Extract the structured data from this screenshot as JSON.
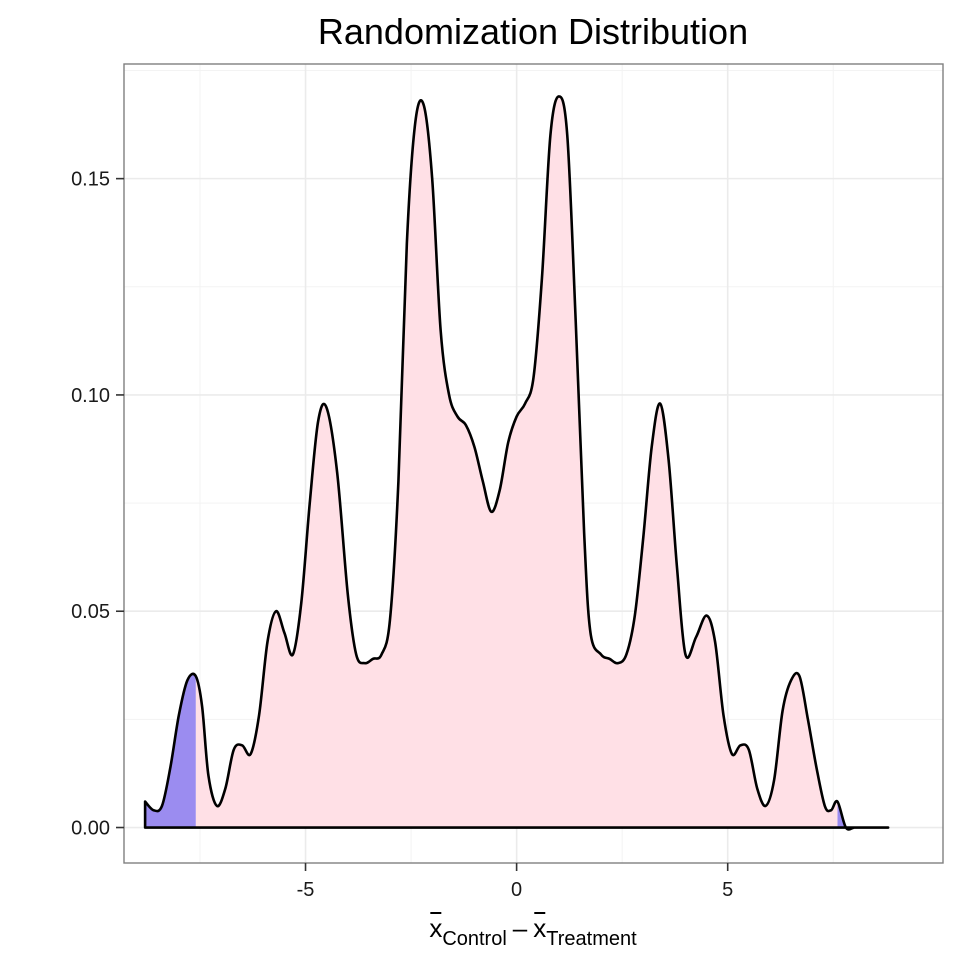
{
  "chart_data": {
    "type": "area",
    "title": "Randomization Distribution",
    "xlabel": {
      "x_symbol": "x",
      "control_label": "Control",
      "minus": "–",
      "treatment_label": "Treatment"
    },
    "ylabel": "",
    "xlim": [
      -9.3,
      10.1
    ],
    "ylim": [
      -0.0082,
      0.1765
    ],
    "x_ticks": [
      -5,
      0,
      5
    ],
    "x_tick_labels": [
      "-5",
      "0",
      "5"
    ],
    "y_ticks": [
      0.0,
      0.05,
      0.1,
      0.15
    ],
    "y_tick_labels": [
      "0.00",
      "0.05",
      "0.10",
      "0.15"
    ],
    "grid": true,
    "tail_cutoffs": [
      -7.6,
      7.6
    ],
    "colors": {
      "body_fill": "#ffe0e6",
      "tail_fill": "#9b8cf0",
      "line": "#000000",
      "grid": "#ebebeb",
      "panel_border": "#7f7f7f"
    },
    "density": {
      "x": [
        -8.8,
        -8.6,
        -8.4,
        -8.2,
        -8.0,
        -7.8,
        -7.6,
        -7.45,
        -7.3,
        -7.1,
        -6.9,
        -6.7,
        -6.5,
        -6.3,
        -6.1,
        -5.9,
        -5.7,
        -5.5,
        -5.3,
        -5.1,
        -4.9,
        -4.7,
        -4.5,
        -4.25,
        -4.0,
        -3.8,
        -3.6,
        -3.4,
        -3.2,
        -3.0,
        -2.8,
        -2.6,
        -2.4,
        -2.2,
        -2.0,
        -1.8,
        -1.6,
        -1.4,
        -1.2,
        -1.0,
        -0.8,
        -0.6,
        -0.4,
        -0.2,
        0.0,
        0.2,
        0.4,
        0.6,
        0.8,
        1.0,
        1.2,
        1.4,
        1.6,
        1.75,
        2.0,
        2.2,
        2.4,
        2.6,
        2.8,
        3.0,
        3.2,
        3.4,
        3.6,
        3.8,
        4.0,
        4.25,
        4.5,
        4.7,
        4.9,
        5.1,
        5.3,
        5.5,
        5.7,
        5.9,
        6.1,
        6.3,
        6.5,
        6.7,
        6.9,
        7.1,
        7.3,
        7.45,
        7.6,
        7.8,
        8.0,
        8.2,
        8.4,
        8.6,
        8.8
      ],
      "y": [
        0.006,
        0.004,
        0.005,
        0.014,
        0.026,
        0.034,
        0.035,
        0.028,
        0.012,
        0.005,
        0.009,
        0.018,
        0.019,
        0.017,
        0.026,
        0.043,
        0.05,
        0.045,
        0.04,
        0.052,
        0.075,
        0.094,
        0.097,
        0.082,
        0.054,
        0.04,
        0.038,
        0.039,
        0.04,
        0.048,
        0.08,
        0.135,
        0.163,
        0.167,
        0.15,
        0.115,
        0.1,
        0.095,
        0.093,
        0.088,
        0.08,
        0.073,
        0.078,
        0.089,
        0.095,
        0.098,
        0.104,
        0.127,
        0.16,
        0.169,
        0.16,
        0.117,
        0.068,
        0.045,
        0.04,
        0.039,
        0.038,
        0.04,
        0.049,
        0.067,
        0.088,
        0.098,
        0.085,
        0.06,
        0.04,
        0.044,
        0.049,
        0.043,
        0.026,
        0.017,
        0.019,
        0.018,
        0.009,
        0.005,
        0.011,
        0.027,
        0.034,
        0.035,
        0.025,
        0.014,
        0.005,
        0.004,
        0.006,
        0.0,
        0.0,
        0.0,
        0.0,
        0.0,
        0.0
      ]
    }
  }
}
